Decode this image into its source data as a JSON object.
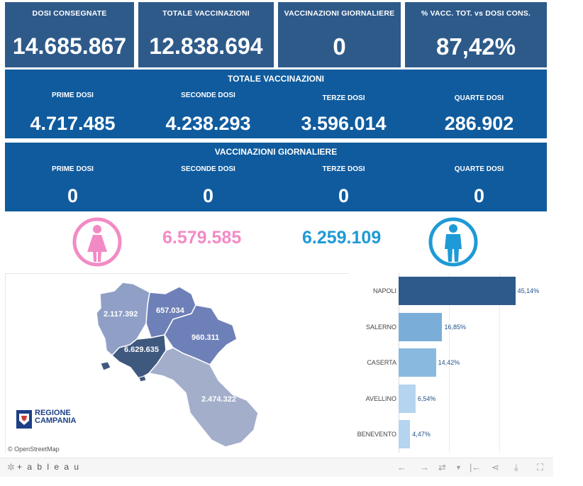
{
  "kpis": [
    {
      "label": "DOSI  CONSEGNATE",
      "value": "14.685.867"
    },
    {
      "label": "TOTALE VACCINAZIONI",
      "value": "12.838.694"
    },
    {
      "label": "VACCINAZIONI GIORNALIERE",
      "value": "0"
    },
    {
      "label": "% VACC. TOT. vs DOSI CONS.",
      "value": "87,42%"
    }
  ],
  "totale": {
    "title": "TOTALE VACCINAZIONI",
    "cells": [
      {
        "label": "PRIME DOSI",
        "value": "4.717.485"
      },
      {
        "label": "SECONDE DOSI",
        "value": "4.238.293"
      },
      {
        "label": "TERZE DOSI",
        "value": "3.596.014"
      },
      {
        "label": "QUARTE DOSI",
        "value": "286.902"
      }
    ]
  },
  "giornaliere": {
    "title": "VACCINAZIONI GIORNALIERE",
    "cells": [
      {
        "label": "PRIME DOSI",
        "value": "0"
      },
      {
        "label": "SECONDE DOSI",
        "value": "0"
      },
      {
        "label": "TERZE DOSI",
        "value": "0"
      },
      {
        "label": "QUARTE DOSI",
        "value": "0"
      }
    ]
  },
  "gender": {
    "female_value": "6.579.585",
    "male_value": "6.259.109",
    "female_color": "#f28bc5",
    "male_color": "#1e9ad6"
  },
  "map": {
    "province_values": {
      "caserta": "2.117.392",
      "benevento": "657.034",
      "avellino": "960.311",
      "napoli": "6.629.635",
      "salerno": "2.474.322"
    },
    "attribution": "© OpenStreetMap",
    "logo_line1": "REGIONE",
    "logo_line2": "CAMPANIA"
  },
  "chart_data": {
    "type": "bar",
    "orientation": "horizontal",
    "categories": [
      "NAPOLI",
      "SALERNO",
      "CASERTA",
      "AVELLINO",
      "BENEVENTO"
    ],
    "values": [
      45.14,
      16.85,
      14.42,
      6.54,
      4.47
    ],
    "labels": [
      "45,14%",
      "16,85%",
      "14,42%",
      "6,54%",
      "4,47%"
    ],
    "colors": [
      "#2e5a8a",
      "#7aaed9",
      "#8ab9e0",
      "#b5d4ef",
      "#b5d4ef"
    ],
    "xlim": [
      0,
      50
    ]
  },
  "footer": {
    "brand": "+ a b l e a u"
  },
  "colors": {
    "kpi_bg": "#2e5a8a",
    "band_bg": "#0f5b9e"
  }
}
